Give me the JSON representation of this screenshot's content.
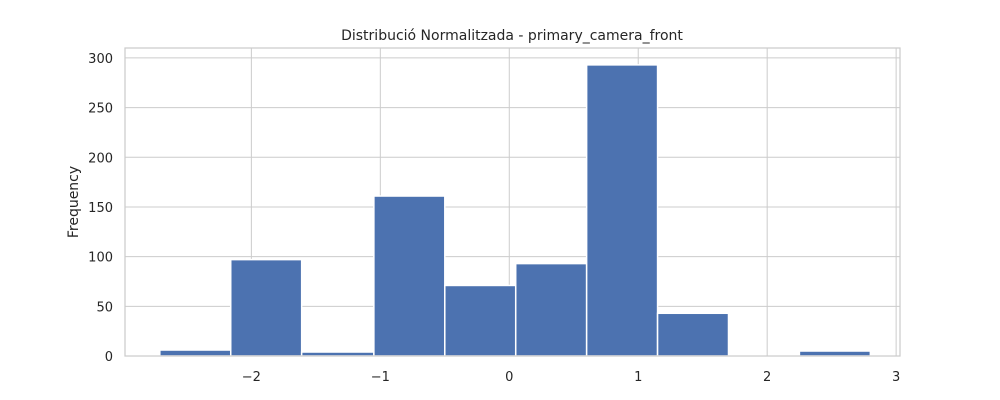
{
  "chart_data": {
    "type": "bar",
    "title": "Distribució Normalitzada - primary_camera_front",
    "xlabel": "",
    "ylabel": "Frequency",
    "bar_color": "#4c72b0",
    "grid": true,
    "xlim": [
      -2.98,
      3.03
    ],
    "ylim": [
      0,
      310
    ],
    "xticks": [
      -2,
      -1,
      0,
      1,
      2,
      3
    ],
    "xtick_labels": [
      "−2",
      "−1",
      "0",
      "1",
      "2",
      "3"
    ],
    "yticks": [
      0,
      50,
      100,
      150,
      200,
      250,
      300
    ],
    "ytick_labels": [
      "0",
      "50",
      "100",
      "150",
      "200",
      "250",
      "300"
    ],
    "bins": [
      {
        "x0": -2.71,
        "x1": -2.16,
        "count": 6
      },
      {
        "x0": -2.16,
        "x1": -1.61,
        "count": 97
      },
      {
        "x0": -1.61,
        "x1": -1.05,
        "count": 4
      },
      {
        "x0": -1.05,
        "x1": -0.5,
        "count": 161
      },
      {
        "x0": -0.5,
        "x1": 0.05,
        "count": 71
      },
      {
        "x0": 0.05,
        "x1": 0.6,
        "count": 93
      },
      {
        "x0": 0.6,
        "x1": 1.15,
        "count": 293
      },
      {
        "x0": 1.15,
        "x1": 1.7,
        "count": 43
      },
      {
        "x0": 1.7,
        "x1": 2.25,
        "count": 0
      },
      {
        "x0": 2.25,
        "x1": 2.8,
        "count": 5
      }
    ]
  }
}
